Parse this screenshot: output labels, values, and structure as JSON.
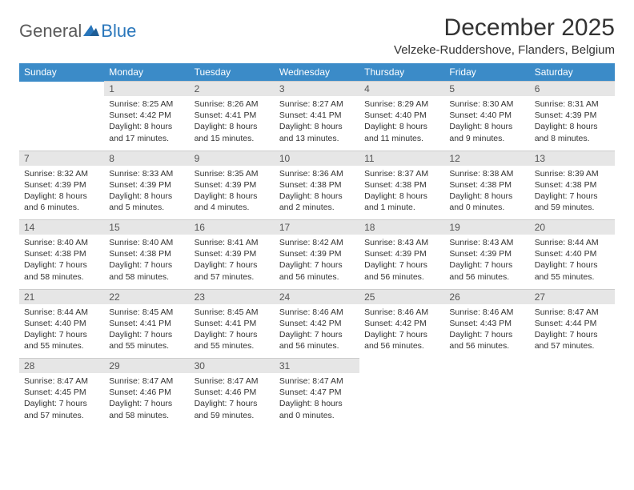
{
  "brand": {
    "part1": "General",
    "part2": "Blue",
    "text_color": "#5a5a5a",
    "accent_color": "#2976bb"
  },
  "title": "December 2025",
  "location": "Velzeke-Ruddershove, Flanders, Belgium",
  "header_bg": "#3b8bc8",
  "header_fg": "#ffffff",
  "daynum_bg": "#e6e6e6",
  "daynum_fg": "#555555",
  "body_fg": "#333333",
  "weekdays": [
    "Sunday",
    "Monday",
    "Tuesday",
    "Wednesday",
    "Thursday",
    "Friday",
    "Saturday"
  ],
  "weeks": [
    [
      null,
      {
        "n": "1",
        "sr": "Sunrise: 8:25 AM",
        "ss": "Sunset: 4:42 PM",
        "dl": "Daylight: 8 hours and 17 minutes."
      },
      {
        "n": "2",
        "sr": "Sunrise: 8:26 AM",
        "ss": "Sunset: 4:41 PM",
        "dl": "Daylight: 8 hours and 15 minutes."
      },
      {
        "n": "3",
        "sr": "Sunrise: 8:27 AM",
        "ss": "Sunset: 4:41 PM",
        "dl": "Daylight: 8 hours and 13 minutes."
      },
      {
        "n": "4",
        "sr": "Sunrise: 8:29 AM",
        "ss": "Sunset: 4:40 PM",
        "dl": "Daylight: 8 hours and 11 minutes."
      },
      {
        "n": "5",
        "sr": "Sunrise: 8:30 AM",
        "ss": "Sunset: 4:40 PM",
        "dl": "Daylight: 8 hours and 9 minutes."
      },
      {
        "n": "6",
        "sr": "Sunrise: 8:31 AM",
        "ss": "Sunset: 4:39 PM",
        "dl": "Daylight: 8 hours and 8 minutes."
      }
    ],
    [
      {
        "n": "7",
        "sr": "Sunrise: 8:32 AM",
        "ss": "Sunset: 4:39 PM",
        "dl": "Daylight: 8 hours and 6 minutes."
      },
      {
        "n": "8",
        "sr": "Sunrise: 8:33 AM",
        "ss": "Sunset: 4:39 PM",
        "dl": "Daylight: 8 hours and 5 minutes."
      },
      {
        "n": "9",
        "sr": "Sunrise: 8:35 AM",
        "ss": "Sunset: 4:39 PM",
        "dl": "Daylight: 8 hours and 4 minutes."
      },
      {
        "n": "10",
        "sr": "Sunrise: 8:36 AM",
        "ss": "Sunset: 4:38 PM",
        "dl": "Daylight: 8 hours and 2 minutes."
      },
      {
        "n": "11",
        "sr": "Sunrise: 8:37 AM",
        "ss": "Sunset: 4:38 PM",
        "dl": "Daylight: 8 hours and 1 minute."
      },
      {
        "n": "12",
        "sr": "Sunrise: 8:38 AM",
        "ss": "Sunset: 4:38 PM",
        "dl": "Daylight: 8 hours and 0 minutes."
      },
      {
        "n": "13",
        "sr": "Sunrise: 8:39 AM",
        "ss": "Sunset: 4:38 PM",
        "dl": "Daylight: 7 hours and 59 minutes."
      }
    ],
    [
      {
        "n": "14",
        "sr": "Sunrise: 8:40 AM",
        "ss": "Sunset: 4:38 PM",
        "dl": "Daylight: 7 hours and 58 minutes."
      },
      {
        "n": "15",
        "sr": "Sunrise: 8:40 AM",
        "ss": "Sunset: 4:38 PM",
        "dl": "Daylight: 7 hours and 58 minutes."
      },
      {
        "n": "16",
        "sr": "Sunrise: 8:41 AM",
        "ss": "Sunset: 4:39 PM",
        "dl": "Daylight: 7 hours and 57 minutes."
      },
      {
        "n": "17",
        "sr": "Sunrise: 8:42 AM",
        "ss": "Sunset: 4:39 PM",
        "dl": "Daylight: 7 hours and 56 minutes."
      },
      {
        "n": "18",
        "sr": "Sunrise: 8:43 AM",
        "ss": "Sunset: 4:39 PM",
        "dl": "Daylight: 7 hours and 56 minutes."
      },
      {
        "n": "19",
        "sr": "Sunrise: 8:43 AM",
        "ss": "Sunset: 4:39 PM",
        "dl": "Daylight: 7 hours and 56 minutes."
      },
      {
        "n": "20",
        "sr": "Sunrise: 8:44 AM",
        "ss": "Sunset: 4:40 PM",
        "dl": "Daylight: 7 hours and 55 minutes."
      }
    ],
    [
      {
        "n": "21",
        "sr": "Sunrise: 8:44 AM",
        "ss": "Sunset: 4:40 PM",
        "dl": "Daylight: 7 hours and 55 minutes."
      },
      {
        "n": "22",
        "sr": "Sunrise: 8:45 AM",
        "ss": "Sunset: 4:41 PM",
        "dl": "Daylight: 7 hours and 55 minutes."
      },
      {
        "n": "23",
        "sr": "Sunrise: 8:45 AM",
        "ss": "Sunset: 4:41 PM",
        "dl": "Daylight: 7 hours and 55 minutes."
      },
      {
        "n": "24",
        "sr": "Sunrise: 8:46 AM",
        "ss": "Sunset: 4:42 PM",
        "dl": "Daylight: 7 hours and 56 minutes."
      },
      {
        "n": "25",
        "sr": "Sunrise: 8:46 AM",
        "ss": "Sunset: 4:42 PM",
        "dl": "Daylight: 7 hours and 56 minutes."
      },
      {
        "n": "26",
        "sr": "Sunrise: 8:46 AM",
        "ss": "Sunset: 4:43 PM",
        "dl": "Daylight: 7 hours and 56 minutes."
      },
      {
        "n": "27",
        "sr": "Sunrise: 8:47 AM",
        "ss": "Sunset: 4:44 PM",
        "dl": "Daylight: 7 hours and 57 minutes."
      }
    ],
    [
      {
        "n": "28",
        "sr": "Sunrise: 8:47 AM",
        "ss": "Sunset: 4:45 PM",
        "dl": "Daylight: 7 hours and 57 minutes."
      },
      {
        "n": "29",
        "sr": "Sunrise: 8:47 AM",
        "ss": "Sunset: 4:46 PM",
        "dl": "Daylight: 7 hours and 58 minutes."
      },
      {
        "n": "30",
        "sr": "Sunrise: 8:47 AM",
        "ss": "Sunset: 4:46 PM",
        "dl": "Daylight: 7 hours and 59 minutes."
      },
      {
        "n": "31",
        "sr": "Sunrise: 8:47 AM",
        "ss": "Sunset: 4:47 PM",
        "dl": "Daylight: 8 hours and 0 minutes."
      },
      null,
      null,
      null
    ]
  ]
}
